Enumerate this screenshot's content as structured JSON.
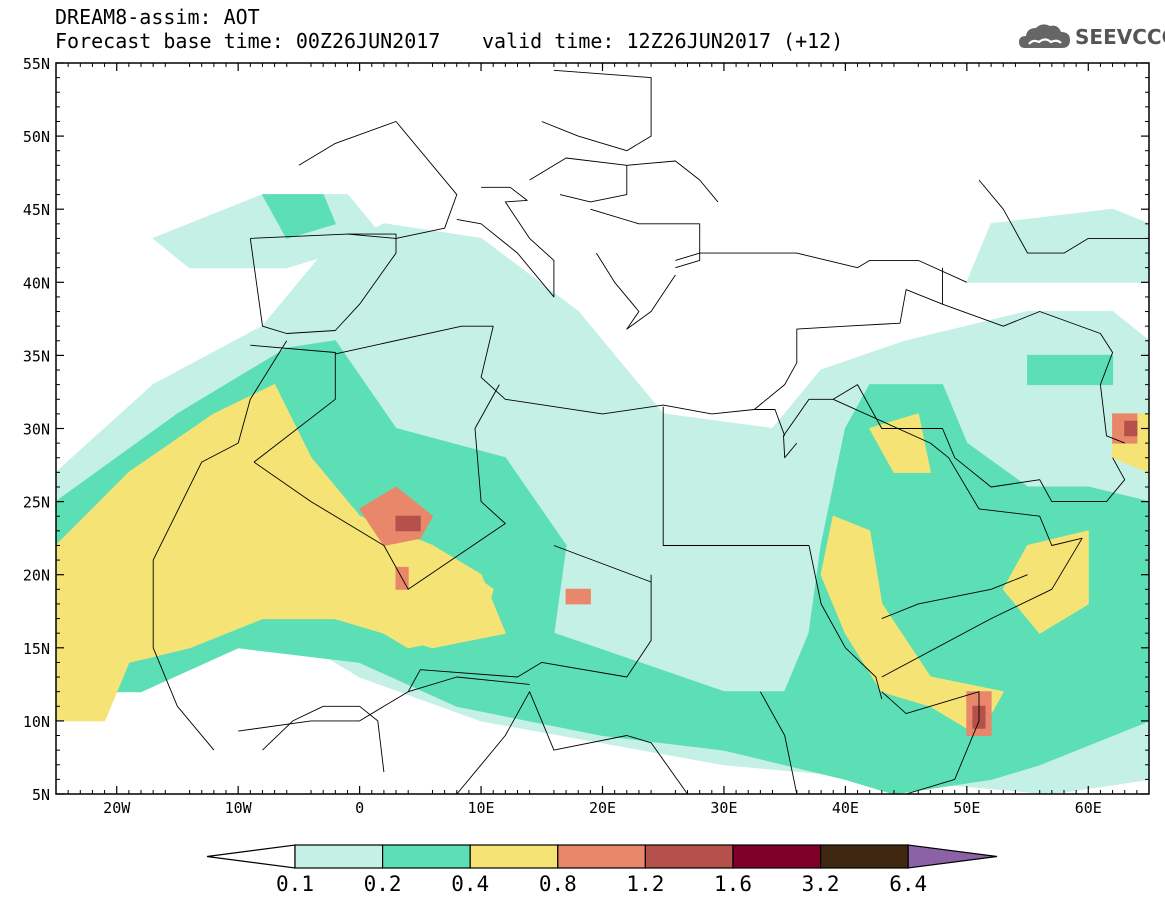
{
  "header": {
    "line1": "DREAM8-assim: AOT",
    "line2": "Forecast base time: 00Z26JUN2017",
    "line3": "valid time: 12Z26JUN2017 (+12)"
  },
  "logo": {
    "text": "SEEVCCC",
    "icon": "cloud-icon",
    "color": "#555555"
  },
  "map": {
    "lon_range": [
      -25,
      65
    ],
    "lat_range": [
      5,
      55
    ],
    "lat_labels": [
      "55N",
      "50N",
      "45N",
      "40N",
      "35N",
      "30N",
      "25N",
      "20N",
      "15N",
      "10N",
      "5N"
    ],
    "lat_values": [
      55,
      50,
      45,
      40,
      35,
      30,
      25,
      20,
      15,
      10,
      5
    ],
    "lon_labels": [
      "20W",
      "10W",
      "0",
      "10E",
      "20E",
      "30E",
      "40E",
      "50E",
      "60E"
    ],
    "lon_values": [
      -20,
      -10,
      0,
      10,
      20,
      30,
      40,
      50,
      60
    ]
  },
  "colorbar": {
    "labels": [
      "0.1",
      "0.2",
      "0.4",
      "0.8",
      "1.2",
      "1.6",
      "3.2",
      "6.4"
    ],
    "colors": [
      "#c4f0e6",
      "#5ddfb6",
      "#f5e475",
      "#e8876a",
      "#b5504a",
      "#7e0028",
      "#3f2712"
    ],
    "under_color": "#ffffff",
    "over_color": "#8b62a6"
  },
  "fields": [
    {
      "level": 0,
      "color": "#c4f0e6",
      "polys": [
        [
          [
            -25,
            27
          ],
          [
            -17,
            33
          ],
          [
            -8,
            37
          ],
          [
            -3,
            42
          ],
          [
            2,
            44
          ],
          [
            10,
            43
          ],
          [
            18,
            38
          ],
          [
            25,
            31
          ],
          [
            34,
            30
          ],
          [
            38,
            34
          ],
          [
            45,
            36
          ],
          [
            55,
            38
          ],
          [
            62,
            38
          ],
          [
            65,
            36
          ],
          [
            65,
            6
          ],
          [
            57,
            5
          ],
          [
            30,
            7
          ],
          [
            10,
            10
          ],
          [
            0,
            13
          ],
          [
            -8,
            17
          ],
          [
            -14,
            21
          ],
          [
            -20,
            12
          ],
          [
            -25,
            12
          ]
        ],
        [
          [
            -17,
            43
          ],
          [
            -8,
            46
          ],
          [
            -1,
            46
          ],
          [
            2,
            43
          ],
          [
            -6,
            41
          ],
          [
            -14,
            41
          ]
        ],
        [
          [
            52,
            44
          ],
          [
            62,
            45
          ],
          [
            65,
            44
          ],
          [
            65,
            40
          ],
          [
            57,
            40
          ],
          [
            50,
            40
          ]
        ]
      ]
    },
    {
      "level": 1,
      "color": "#5ddfb6",
      "polys": [
        [
          [
            -25,
            25
          ],
          [
            -15,
            31
          ],
          [
            -6,
            35.5
          ],
          [
            -2,
            36
          ],
          [
            3,
            30
          ],
          [
            12,
            28
          ],
          [
            17,
            22
          ],
          [
            16,
            16
          ],
          [
            23,
            14
          ],
          [
            30,
            12
          ],
          [
            35,
            12
          ],
          [
            37,
            16
          ],
          [
            38,
            22
          ],
          [
            40,
            30
          ],
          [
            42,
            33
          ],
          [
            48,
            33
          ],
          [
            50,
            29
          ],
          [
            55,
            26
          ],
          [
            60,
            26
          ],
          [
            65,
            25
          ],
          [
            65,
            10
          ],
          [
            56,
            7
          ],
          [
            52,
            6
          ],
          [
            44,
            5
          ],
          [
            40,
            6
          ],
          [
            30,
            8
          ],
          [
            20,
            9
          ],
          [
            8,
            11
          ],
          [
            0,
            14
          ],
          [
            -10,
            15
          ],
          [
            -18,
            12
          ],
          [
            -25,
            12
          ]
        ],
        [
          [
            -8,
            46
          ],
          [
            -3,
            46
          ],
          [
            -2,
            44
          ],
          [
            -6,
            43
          ]
        ],
        [
          [
            55,
            35
          ],
          [
            62,
            35
          ],
          [
            62,
            33
          ],
          [
            55,
            33
          ]
        ]
      ]
    },
    {
      "level": 2,
      "color": "#f5e475",
      "polys": [
        [
          [
            -25,
            22
          ],
          [
            -19,
            27
          ],
          [
            -12,
            31
          ],
          [
            -7,
            33
          ],
          [
            -4,
            28
          ],
          [
            0,
            24
          ],
          [
            6,
            22
          ],
          [
            10,
            20
          ],
          [
            12,
            16
          ],
          [
            6,
            15
          ],
          [
            -2,
            17
          ],
          [
            -8,
            17
          ],
          [
            -14,
            15
          ],
          [
            -19,
            14
          ],
          [
            -21,
            10
          ],
          [
            -25,
            10
          ]
        ],
        [
          [
            -1,
            22
          ],
          [
            6,
            22
          ],
          [
            11,
            19
          ],
          [
            10,
            16
          ],
          [
            4,
            15
          ],
          [
            0,
            17
          ]
        ],
        [
          [
            42,
            30
          ],
          [
            46,
            31
          ],
          [
            47,
            27
          ],
          [
            44,
            27
          ]
        ],
        [
          [
            39,
            24
          ],
          [
            42,
            23
          ],
          [
            43,
            18
          ],
          [
            47,
            13
          ],
          [
            53,
            12
          ],
          [
            51,
            9
          ],
          [
            47,
            11
          ],
          [
            43,
            12
          ],
          [
            40,
            16
          ],
          [
            38,
            20
          ]
        ],
        [
          [
            55,
            22
          ],
          [
            60,
            23
          ],
          [
            60,
            18
          ],
          [
            56,
            16
          ],
          [
            53,
            19
          ]
        ],
        [
          [
            62,
            31
          ],
          [
            65,
            31
          ],
          [
            65,
            27
          ],
          [
            62,
            28
          ]
        ]
      ]
    },
    {
      "level": 3,
      "color": "#e8876a",
      "polys": [
        [
          [
            0,
            24.5
          ],
          [
            3,
            26
          ],
          [
            6,
            24
          ],
          [
            5,
            22.5
          ],
          [
            2,
            22
          ]
        ],
        [
          [
            3,
            20.5
          ],
          [
            4,
            20.5
          ],
          [
            4,
            19
          ],
          [
            3,
            19
          ]
        ],
        [
          [
            17,
            19
          ],
          [
            19,
            19
          ],
          [
            19,
            18
          ],
          [
            17,
            18
          ]
        ],
        [
          [
            50,
            12
          ],
          [
            52,
            12
          ],
          [
            52,
            9
          ],
          [
            50,
            9
          ]
        ],
        [
          [
            62,
            31
          ],
          [
            64,
            31
          ],
          [
            64,
            29
          ],
          [
            62,
            29
          ]
        ]
      ]
    },
    {
      "level": 4,
      "color": "#b5504a",
      "polys": [
        [
          [
            3,
            24
          ],
          [
            5,
            24
          ],
          [
            5,
            23
          ],
          [
            3,
            23
          ]
        ],
        [
          [
            50.5,
            11
          ],
          [
            51.5,
            11
          ],
          [
            51.5,
            9.5
          ],
          [
            50.5,
            9.5
          ]
        ],
        [
          [
            63,
            30.5
          ],
          [
            64,
            30.5
          ],
          [
            64,
            29.5
          ],
          [
            63,
            29.5
          ]
        ]
      ]
    }
  ],
  "borders": [
    [
      [
        -9,
        43
      ],
      [
        -8,
        37
      ],
      [
        -6,
        36.5
      ],
      [
        -2,
        36.7
      ],
      [
        0,
        38.5
      ],
      [
        3,
        42
      ],
      [
        3,
        43.3
      ],
      [
        -1,
        43.3
      ],
      [
        -9,
        43
      ]
    ],
    [
      [
        -1,
        43.3
      ],
      [
        3,
        43
      ],
      [
        7,
        43.7
      ],
      [
        8,
        46
      ],
      [
        3,
        51
      ],
      [
        -2,
        49.5
      ],
      [
        -5,
        48
      ]
    ],
    [
      [
        8,
        44.3
      ],
      [
        10,
        44
      ],
      [
        13,
        42
      ],
      [
        16,
        39
      ],
      [
        16,
        41.5
      ],
      [
        14,
        43
      ],
      [
        12,
        45.5
      ],
      [
        13.8,
        45.6
      ],
      [
        12.4,
        46.5
      ],
      [
        10,
        46.5
      ]
    ],
    [
      [
        -6,
        36
      ],
      [
        -9,
        32
      ],
      [
        -10,
        29
      ],
      [
        -13,
        27.7
      ],
      [
        -17,
        21
      ],
      [
        -17,
        15
      ],
      [
        -15,
        11
      ],
      [
        -12,
        8
      ]
    ],
    [
      [
        -9,
        35.7
      ],
      [
        -2,
        35.2
      ],
      [
        -2,
        32
      ],
      [
        -8.7,
        27.7
      ]
    ],
    [
      [
        -2,
        35.1
      ],
      [
        8.4,
        37
      ],
      [
        11,
        37
      ],
      [
        10,
        33.5
      ],
      [
        12,
        32
      ],
      [
        20,
        31
      ],
      [
        25,
        31.6
      ],
      [
        29,
        31
      ],
      [
        32.5,
        31.3
      ],
      [
        34.2,
        31.3
      ],
      [
        35,
        29.5
      ]
    ],
    [
      [
        -8.7,
        27.7
      ],
      [
        -4,
        25
      ],
      [
        2,
        22
      ],
      [
        4,
        19
      ],
      [
        12,
        23.5
      ],
      [
        10,
        25
      ],
      [
        9.5,
        30
      ],
      [
        11.5,
        33
      ]
    ],
    [
      [
        25,
        31.5
      ],
      [
        25,
        22
      ],
      [
        37,
        22
      ]
    ],
    [
      [
        24,
        20
      ],
      [
        24,
        15.5
      ],
      [
        22,
        13
      ],
      [
        15,
        14
      ],
      [
        13,
        13
      ],
      [
        5,
        13.5
      ],
      [
        4,
        12
      ]
    ],
    [
      [
        16,
        22
      ],
      [
        24,
        19.5
      ]
    ],
    [
      [
        32.5,
        31.3
      ],
      [
        35,
        33
      ],
      [
        36,
        34.5
      ],
      [
        36,
        36.8
      ],
      [
        40,
        37
      ],
      [
        44.5,
        37.2
      ],
      [
        45,
        39.5
      ],
      [
        48,
        38.5
      ],
      [
        48,
        41
      ]
    ],
    [
      [
        26,
        41.5
      ],
      [
        28,
        42
      ],
      [
        36,
        42
      ],
      [
        41,
        41
      ],
      [
        42,
        41.5
      ],
      [
        46,
        41.5
      ],
      [
        50,
        40
      ]
    ],
    [
      [
        36,
        29
      ],
      [
        35,
        28
      ],
      [
        34.9,
        29.5
      ],
      [
        37,
        32
      ],
      [
        39,
        32
      ],
      [
        41,
        33
      ],
      [
        43,
        30
      ],
      [
        48,
        30
      ]
    ],
    [
      [
        39,
        32
      ],
      [
        47,
        29
      ],
      [
        48.5,
        28
      ],
      [
        51,
        24.5
      ],
      [
        56,
        24
      ],
      [
        57,
        22
      ],
      [
        59.5,
        22.5
      ],
      [
        57,
        19
      ],
      [
        52,
        17
      ],
      [
        43,
        13
      ]
    ],
    [
      [
        43,
        17
      ],
      [
        46,
        18
      ],
      [
        52,
        19
      ],
      [
        55,
        20
      ]
    ],
    [
      [
        43,
        12
      ],
      [
        45,
        10.5
      ],
      [
        51,
        12
      ],
      [
        51,
        10
      ],
      [
        49,
        6
      ],
      [
        45,
        5
      ]
    ],
    [
      [
        37,
        22
      ],
      [
        38,
        18
      ],
      [
        40,
        15
      ],
      [
        42.5,
        13
      ],
      [
        43,
        11.5
      ]
    ],
    [
      [
        33,
        12
      ],
      [
        35,
        9
      ],
      [
        36,
        5
      ],
      [
        40,
        4
      ]
    ],
    [
      [
        48,
        30
      ],
      [
        49,
        28
      ],
      [
        52,
        26
      ],
      [
        56,
        26.5
      ],
      [
        57,
        25
      ],
      [
        61.5,
        25
      ],
      [
        63,
        26.5
      ],
      [
        62,
        28
      ]
    ],
    [
      [
        48,
        38.5
      ],
      [
        53,
        37
      ],
      [
        56,
        38
      ],
      [
        61,
        36.5
      ],
      [
        62,
        35.2
      ],
      [
        61,
        33
      ],
      [
        61.5,
        29.5
      ],
      [
        63,
        29
      ]
    ],
    [
      [
        51,
        47
      ],
      [
        53,
        45
      ],
      [
        55,
        42
      ],
      [
        58,
        42
      ],
      [
        60,
        43
      ],
      [
        65,
        43
      ]
    ],
    [
      [
        15,
        51
      ],
      [
        18,
        50
      ],
      [
        22,
        49
      ],
      [
        24,
        50
      ],
      [
        24,
        54
      ],
      [
        16,
        54.5
      ]
    ],
    [
      [
        22,
        48
      ],
      [
        26,
        48.3
      ],
      [
        28,
        47
      ],
      [
        29.5,
        45.5
      ]
    ],
    [
      [
        14,
        47
      ],
      [
        17,
        48.5
      ],
      [
        22,
        48
      ],
      [
        22,
        46
      ],
      [
        19,
        45.5
      ],
      [
        16.5,
        46
      ]
    ],
    [
      [
        19,
        45
      ],
      [
        23,
        44
      ],
      [
        28,
        44
      ],
      [
        28,
        41.5
      ],
      [
        26,
        41
      ]
    ],
    [
      [
        19.5,
        42
      ],
      [
        21,
        40
      ],
      [
        23,
        38
      ],
      [
        22,
        36.8
      ],
      [
        24,
        38
      ],
      [
        26,
        40.5
      ]
    ],
    [
      [
        -10,
        9.3
      ],
      [
        -4,
        10
      ],
      [
        0,
        10
      ],
      [
        2,
        11
      ],
      [
        4,
        12
      ],
      [
        8,
        13
      ],
      [
        14,
        12.5
      ]
    ],
    [
      [
        2,
        6.5
      ],
      [
        1.5,
        10
      ],
      [
        0,
        11
      ],
      [
        -3,
        11
      ],
      [
        -5.5,
        10
      ],
      [
        -8,
        8
      ]
    ],
    [
      [
        8,
        5
      ],
      [
        10,
        7
      ],
      [
        12,
        9
      ],
      [
        14,
        12
      ],
      [
        15,
        10
      ],
      [
        16,
        8
      ],
      [
        22,
        9
      ],
      [
        24,
        8.5
      ],
      [
        27,
        5
      ]
    ]
  ]
}
